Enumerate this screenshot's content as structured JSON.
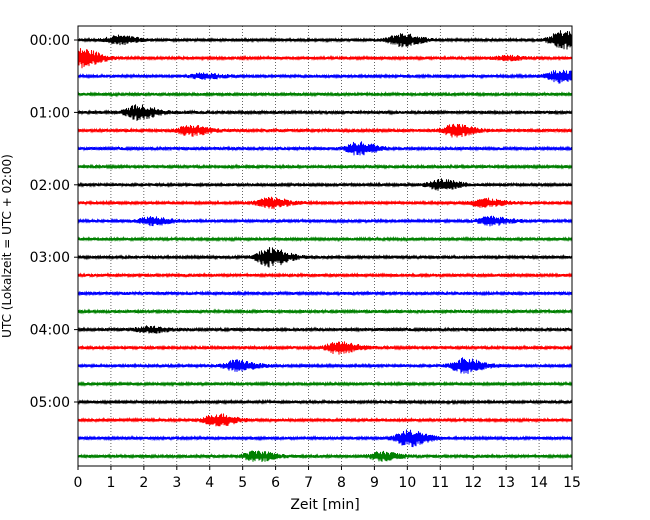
{
  "chart_data": {
    "type": "line",
    "title": "",
    "xlabel": "Zeit  [min]",
    "ylabel": "UTC (Lokalzeit = UTC + 02:00)",
    "xlim": [
      0,
      15
    ],
    "xticks": [
      0,
      1,
      2,
      3,
      4,
      5,
      6,
      7,
      8,
      9,
      10,
      11,
      12,
      13,
      14,
      15
    ],
    "xtick_labels": [
      "0",
      "1",
      "2",
      "3",
      "4",
      "5",
      "6",
      "7",
      "8",
      "9",
      "10",
      "11",
      "12",
      "13",
      "14",
      "15"
    ],
    "yticks": [
      "00:00",
      "01:00",
      "02:00",
      "03:00",
      "04:00",
      "05:00"
    ],
    "grid": "vertical dotted at each minute",
    "trace_interval_minutes": 15,
    "color_cycle": [
      "#000000",
      "#ff0000",
      "#0000ff",
      "#008000"
    ],
    "traces": [
      {
        "start": "00:00",
        "color": "#000000",
        "base": 1.5,
        "events": [
          {
            "t": 1.2,
            "amp": 4
          },
          {
            "t": 9.8,
            "amp": 6
          },
          {
            "t": 14.7,
            "amp": 9
          }
        ]
      },
      {
        "start": "00:15",
        "color": "#ff0000",
        "base": 1.5,
        "events": [
          {
            "t": 0.1,
            "amp": 9
          },
          {
            "t": 13.0,
            "amp": 2
          }
        ]
      },
      {
        "start": "00:30",
        "color": "#0000ff",
        "base": 1.5,
        "events": [
          {
            "t": 3.8,
            "amp": 2.5
          },
          {
            "t": 14.6,
            "amp": 6
          }
        ]
      },
      {
        "start": "00:45",
        "color": "#008000",
        "base": 1.5,
        "events": []
      },
      {
        "start": "01:00",
        "color": "#000000",
        "base": 1.5,
        "events": [
          {
            "t": 1.8,
            "amp": 7
          }
        ]
      },
      {
        "start": "01:15",
        "color": "#ff0000",
        "base": 1.5,
        "events": [
          {
            "t": 3.4,
            "amp": 5
          },
          {
            "t": 11.4,
            "amp": 6
          }
        ]
      },
      {
        "start": "01:30",
        "color": "#0000ff",
        "base": 1.5,
        "events": [
          {
            "t": 8.5,
            "amp": 6
          }
        ]
      },
      {
        "start": "01:45",
        "color": "#008000",
        "base": 1.5,
        "events": []
      },
      {
        "start": "02:00",
        "color": "#000000",
        "base": 1.5,
        "events": [
          {
            "t": 11.0,
            "amp": 5
          }
        ]
      },
      {
        "start": "02:15",
        "color": "#ff0000",
        "base": 1.5,
        "events": [
          {
            "t": 5.8,
            "amp": 5
          },
          {
            "t": 12.3,
            "amp": 4
          }
        ]
      },
      {
        "start": "02:30",
        "color": "#0000ff",
        "base": 1.5,
        "events": [
          {
            "t": 2.2,
            "amp": 4
          },
          {
            "t": 12.5,
            "amp": 4
          }
        ]
      },
      {
        "start": "02:45",
        "color": "#008000",
        "base": 1.5,
        "events": []
      },
      {
        "start": "03:00",
        "color": "#000000",
        "base": 1.5,
        "events": [
          {
            "t": 5.8,
            "amp": 9
          }
        ]
      },
      {
        "start": "03:15",
        "color": "#ff0000",
        "base": 1.5,
        "events": []
      },
      {
        "start": "03:30",
        "color": "#0000ff",
        "base": 1.5,
        "events": []
      },
      {
        "start": "03:45",
        "color": "#008000",
        "base": 1.5,
        "events": []
      },
      {
        "start": "04:00",
        "color": "#000000",
        "base": 1.5,
        "events": [
          {
            "t": 2.1,
            "amp": 3
          }
        ]
      },
      {
        "start": "04:15",
        "color": "#ff0000",
        "base": 1.5,
        "events": [
          {
            "t": 7.9,
            "amp": 6
          }
        ]
      },
      {
        "start": "04:30",
        "color": "#0000ff",
        "base": 1.5,
        "events": [
          {
            "t": 4.8,
            "amp": 5
          },
          {
            "t": 11.7,
            "amp": 7
          }
        ]
      },
      {
        "start": "04:45",
        "color": "#008000",
        "base": 1.5,
        "events": []
      },
      {
        "start": "05:00",
        "color": "#000000",
        "base": 1.5,
        "events": []
      },
      {
        "start": "05:15",
        "color": "#ff0000",
        "base": 1.5,
        "events": [
          {
            "t": 4.2,
            "amp": 6
          }
        ]
      },
      {
        "start": "05:30",
        "color": "#0000ff",
        "base": 1.5,
        "events": [
          {
            "t": 10.0,
            "amp": 8
          }
        ]
      },
      {
        "start": "05:45",
        "color": "#008000",
        "base": 1.5,
        "events": [
          {
            "t": 5.4,
            "amp": 5
          },
          {
            "t": 9.2,
            "amp": 4
          }
        ]
      }
    ]
  }
}
